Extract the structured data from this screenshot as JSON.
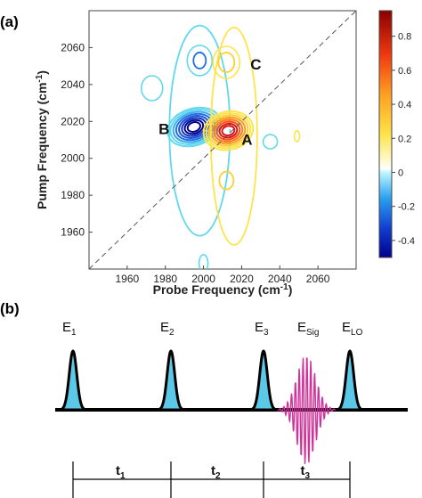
{
  "panel_a_label": "(a)",
  "panel_b_label": "(b)",
  "chart_data": {
    "type": "heatmap",
    "subtype": "2D IR contour plot",
    "xlabel": "Probe Frequency (cm",
    "xlabel_sup": "-1",
    "xlabel_end": ")",
    "ylabel": "Pump Frequency (cm",
    "ylabel_sup": "-1",
    "ylabel_end": ")",
    "xlim": [
      1940,
      2080
    ],
    "ylim": [
      1940,
      2080
    ],
    "x_ticks": [
      1960,
      1980,
      2000,
      2020,
      2040,
      2060
    ],
    "y_ticks": [
      1960,
      1980,
      2000,
      2020,
      2040,
      2060
    ],
    "colorbar": {
      "min": -0.5,
      "max": 0.95,
      "ticks": [
        -0.4,
        -0.2,
        0,
        0.2,
        0.4,
        0.6,
        0.8
      ],
      "tick_labels": [
        "-0.4",
        "-0.2",
        "0",
        "0.2",
        "0.4",
        "0.6",
        "0.8"
      ]
    },
    "diagonal": "dashed",
    "peaks": [
      {
        "label": "A",
        "x": 2012,
        "y": 2015,
        "sign": "positive",
        "amplitude": 0.9
      },
      {
        "label": "B",
        "x": 1997,
        "y": 2017,
        "sign": "negative",
        "amplitude": -0.5
      },
      {
        "label": "C",
        "x": 2012,
        "y": 2052,
        "sign": "positive",
        "amplitude": 0.15
      }
    ],
    "colors": {
      "negative_deep": "#00008b",
      "negative_mid": "#1f6fe0",
      "negative_light": "#5fd8ee",
      "positive_light": "#ffe34a",
      "positive_mid": "#ff9a1a",
      "positive_deep": "#e01010"
    }
  },
  "pulse_sequence": {
    "pulses": [
      {
        "base": "E",
        "sub": "1"
      },
      {
        "base": "E",
        "sub": "2"
      },
      {
        "base": "E",
        "sub": "3"
      },
      {
        "base": "E",
        "sub": "Sig"
      },
      {
        "base": "E",
        "sub": "LO"
      }
    ],
    "delays": [
      "t",
      "t",
      "t"
    ],
    "delay_subs": [
      "1",
      "2",
      "3"
    ],
    "colors": {
      "pulse_fill": "#5bc8e8",
      "signal": "#d0329a",
      "line": "#000000"
    }
  }
}
